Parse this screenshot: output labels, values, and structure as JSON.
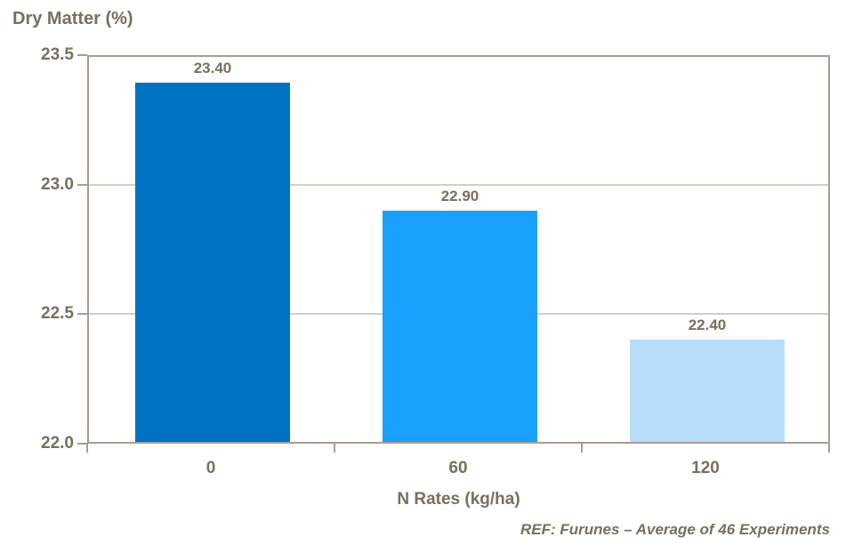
{
  "chart_data": {
    "type": "bar",
    "title": "Dry Matter (%)",
    "xlabel": "N Rates (kg/ha)",
    "ylabel": "Dry Matter (%)",
    "categories": [
      "0",
      "60",
      "120"
    ],
    "values": [
      23.4,
      22.9,
      22.4
    ],
    "value_labels": [
      "23.40",
      "22.90",
      "22.40"
    ],
    "bar_colors": [
      "#0072C2",
      "#19A0FD",
      "#B8DDFB"
    ],
    "ylim": [
      22.0,
      23.5
    ],
    "yticks": [
      23.5,
      23.0,
      22.5,
      22.0
    ],
    "ytick_labels": [
      "23.5",
      "23.0",
      "22.5",
      "22.0"
    ],
    "gridlines": [
      23.0,
      22.5
    ],
    "grid": true,
    "legend": false,
    "annotation": "REF: Furunes – Average of 46 Experiments"
  },
  "colors": {
    "text": "#7A6E5E",
    "axis": "#A89E8F",
    "gridline": "#D4CDC2"
  }
}
